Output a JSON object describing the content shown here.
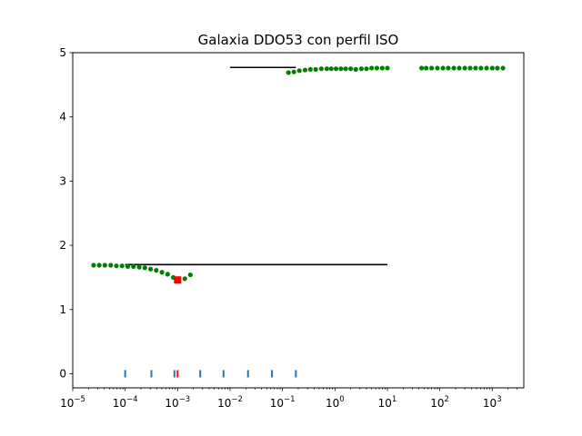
{
  "chart_data": {
    "type": "scatter",
    "title": "Galaxia DDO53 con perfil ISO",
    "xlabel": "",
    "ylabel": "",
    "xscale": "log",
    "xlim": [
      1e-05,
      4000
    ],
    "ylim": [
      -0.22,
      5.0
    ],
    "x_ticks": [
      {
        "value": 1e-05,
        "base": "10",
        "exp": "−5"
      },
      {
        "value": 0.0001,
        "base": "10",
        "exp": "−4"
      },
      {
        "value": 0.001,
        "base": "10",
        "exp": "−3"
      },
      {
        "value": 0.01,
        "base": "10",
        "exp": "−2"
      },
      {
        "value": 0.1,
        "base": "10",
        "exp": "−1"
      },
      {
        "value": 1,
        "base": "10",
        "exp": "0"
      },
      {
        "value": 10,
        "base": "10",
        "exp": "1"
      },
      {
        "value": 100,
        "base": "10",
        "exp": "2"
      },
      {
        "value": 1000,
        "base": "10",
        "exp": "3"
      }
    ],
    "y_ticks": [
      "0",
      "1",
      "2",
      "3",
      "4",
      "5"
    ],
    "grid": false,
    "colors": {
      "points": "#008000",
      "lines": "#000000",
      "ticks": "#1f77b4",
      "marker": "#ff0000"
    },
    "series": [
      {
        "type": "scatter",
        "points": [
          [
            2.5e-05,
            1.69
          ],
          [
            3.2e-05,
            1.69
          ],
          [
            4.1e-05,
            1.69
          ],
          [
            5.3e-05,
            1.69
          ],
          [
            6.8e-05,
            1.68
          ],
          [
            8.7e-05,
            1.68
          ],
          [
            0.000112,
            1.67
          ],
          [
            0.000144,
            1.67
          ],
          [
            0.000185,
            1.66
          ],
          [
            0.000237,
            1.65
          ],
          [
            0.000305,
            1.63
          ],
          [
            0.000391,
            1.61
          ],
          [
            0.000502,
            1.58
          ],
          [
            0.000645,
            1.55
          ],
          [
            0.000828,
            1.5
          ],
          [
            0.00106,
            1.48
          ],
          [
            0.00137,
            1.48
          ],
          [
            0.00175,
            1.54
          ],
          [
            0.13,
            4.69
          ],
          [
            0.165,
            4.7
          ],
          [
            0.21,
            4.72
          ],
          [
            0.27,
            4.73
          ],
          [
            0.34,
            4.74
          ],
          [
            0.43,
            4.74
          ],
          [
            0.55,
            4.75
          ],
          [
            0.7,
            4.75
          ],
          [
            0.85,
            4.75
          ],
          [
            1.05,
            4.75
          ],
          [
            1.3,
            4.75
          ],
          [
            1.6,
            4.75
          ],
          [
            2.0,
            4.75
          ],
          [
            2.5,
            4.74
          ],
          [
            3.2,
            4.75
          ],
          [
            4.0,
            4.75
          ],
          [
            5.0,
            4.76
          ],
          [
            6.3,
            4.76
          ],
          [
            8.0,
            4.76
          ],
          [
            10.0,
            4.76
          ],
          [
            45,
            4.76
          ],
          [
            55,
            4.76
          ],
          [
            70,
            4.76
          ],
          [
            90,
            4.76
          ],
          [
            115,
            4.76
          ],
          [
            145,
            4.76
          ],
          [
            185,
            4.76
          ],
          [
            235,
            4.76
          ],
          [
            300,
            4.76
          ],
          [
            380,
            4.76
          ],
          [
            480,
            4.76
          ],
          [
            610,
            4.76
          ],
          [
            780,
            4.76
          ],
          [
            1000,
            4.76
          ],
          [
            1250,
            4.76
          ],
          [
            1600,
            4.76
          ]
        ]
      },
      {
        "type": "line",
        "segments": [
          {
            "x": [
              0.0001,
              10
            ],
            "y": [
              1.7,
              1.7
            ]
          },
          {
            "x": [
              0.01,
              0.18
            ],
            "y": [
              4.77,
              4.77
            ]
          }
        ]
      },
      {
        "type": "rug",
        "y": 0,
        "x": [
          0.0001,
          0.000316,
          0.00087,
          0.0027,
          0.0075,
          0.022,
          0.063,
          0.18
        ]
      },
      {
        "type": "rug",
        "y": 0,
        "x": [
          0.001
        ],
        "color": "red"
      },
      {
        "type": "marker",
        "shape": "square",
        "points": [
          [
            0.001,
            1.46
          ]
        ]
      }
    ]
  }
}
